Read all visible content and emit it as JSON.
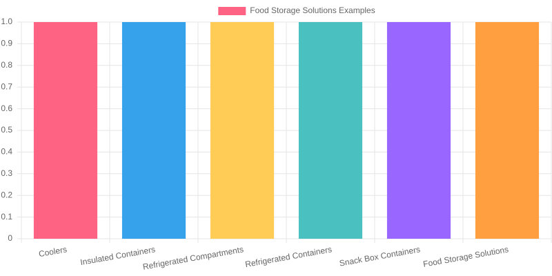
{
  "chart_data": {
    "type": "bar",
    "categories": [
      "Coolers",
      "Insulated Containers",
      "Refrigerated Compartments",
      "Refrigerated Containers",
      "Snack Box Containers",
      "Food Storage Solutions"
    ],
    "series": [
      {
        "name": "Food Storage Solutions Examples",
        "colors": [
          "#ff6384",
          "#36a2eb",
          "#ffcd56",
          "#4bc0c0",
          "#9966ff",
          "#ff9f40"
        ],
        "values": [
          1,
          1,
          1,
          1,
          1,
          1
        ]
      }
    ],
    "ylim": [
      0,
      1
    ],
    "yticks": [
      0,
      0.1,
      0.2,
      0.3,
      0.4,
      0.5,
      0.6,
      0.7,
      0.8,
      0.9,
      {
        "value": 1,
        "label": "1.0"
      }
    ],
    "grid": true,
    "legend": "top"
  }
}
